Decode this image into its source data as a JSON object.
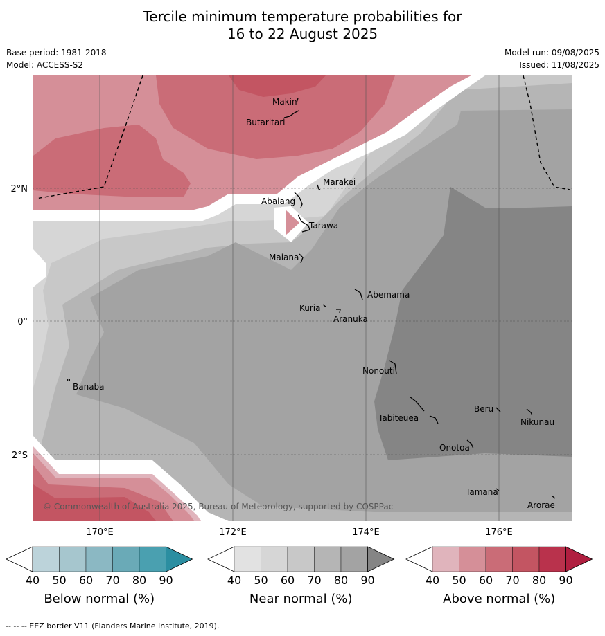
{
  "header": {
    "title_line1": "Tercile minimum temperature probabilities for",
    "title_line2": "16 to 22 August 2025",
    "base_period": "Base period: 1981-2018",
    "model": "Model: ACCESS-S2",
    "model_run": "Model run: 09/08/2025",
    "issued": "Issued: 11/08/2025"
  },
  "map": {
    "copyright": "© Commonwealth of Australia 2025, Bureau of Meteorology, supported by COSPPac",
    "lon_labels": [
      "170°E",
      "172°E",
      "174°E",
      "176°E"
    ],
    "lat_labels": [
      "2°N",
      "0°",
      "2°S"
    ],
    "places": [
      "Makin",
      "Butaritari",
      "Marakei",
      "Abaiang",
      "Tarawa",
      "Maiana",
      "Abemama",
      "Kuria",
      "Aranuka",
      "Nonouti",
      "Banaba",
      "Beru",
      "Tabiteuea",
      "Nikunau",
      "Onotoa",
      "Tamana",
      "Arorae"
    ],
    "colors": {
      "above_40": "#e0b4bc",
      "above_50": "#d58f98",
      "above_60": "#ca6c77",
      "above_70": "#c35562",
      "above_80": "#b9324c",
      "near_40": "#e2e2e2",
      "near_50": "#d6d6d6",
      "near_60": "#c8c8c8",
      "near_70": "#b5b5b5",
      "near_80": "#a3a3a3",
      "near_90": "#858585"
    }
  },
  "legends": [
    {
      "label": "Below normal (%)",
      "ticks": [
        "40",
        "50",
        "60",
        "70",
        "80",
        "90"
      ],
      "colors": [
        "#ffffff",
        "#bcd3da",
        "#a6c6ce",
        "#8bb8c3",
        "#6aaab7",
        "#4aa0b0",
        "#2b8ea1"
      ]
    },
    {
      "label": "Near normal (%)",
      "ticks": [
        "40",
        "50",
        "60",
        "70",
        "80",
        "90"
      ],
      "colors": [
        "#ffffff",
        "#e2e2e2",
        "#d6d6d6",
        "#c8c8c8",
        "#b5b5b5",
        "#a3a3a3",
        "#858585"
      ]
    },
    {
      "label": "Above normal (%)",
      "ticks": [
        "40",
        "50",
        "60",
        "70",
        "80",
        "90"
      ],
      "colors": [
        "#ffffff",
        "#e0b4bc",
        "#d58f98",
        "#ca6c77",
        "#c35562",
        "#b9324c",
        "#b01f40"
      ]
    }
  ],
  "footer": {
    "eez_note": "--  --  -- EEZ border V11 (Flanders Marine Institute, 2019)."
  }
}
